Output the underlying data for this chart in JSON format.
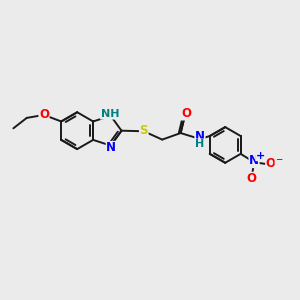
{
  "bg_color": "#ebebeb",
  "bond_color": "#1a1a1a",
  "colors": {
    "N": "#0000ff",
    "O": "#ff0000",
    "S": "#cccc00",
    "NH_color": "#008080",
    "C": "#1a1a1a",
    "plus": "#0000ff",
    "minus": "#ff0000"
  },
  "figsize": [
    3.0,
    3.0
  ],
  "dpi": 100
}
